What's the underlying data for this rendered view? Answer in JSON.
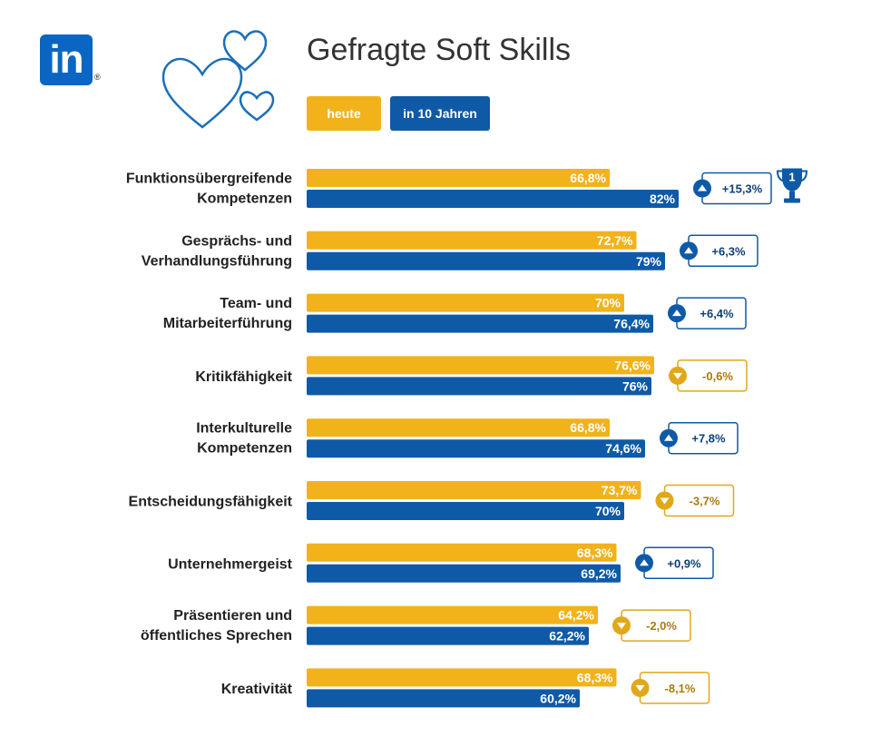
{
  "brand": {
    "logo_text": "in",
    "logo_mark": "®",
    "logo_color": "#0a66c2"
  },
  "header": {
    "title": "Gefragte Soft Skills"
  },
  "legend": [
    {
      "label": "heute",
      "color": "#f2b21a"
    },
    {
      "label": "in 10 Jahren",
      "color": "#0e5aa7"
    }
  ],
  "decoration": {
    "icon": "hearts-icon",
    "color": "#1b6fb8"
  },
  "chart_data": {
    "type": "bar",
    "orientation": "horizontal",
    "unit": "%",
    "xlim": [
      0,
      100
    ],
    "grid": false,
    "legend_position": "top-left",
    "colors": {
      "heute": "#f2b21a",
      "in_10_jahren": "#0e5aa7",
      "up": "#0e5aa7",
      "down": "#e0a81a"
    },
    "categories": [
      [
        "Funktionsübergreifende",
        "Kompetenzen"
      ],
      [
        "Gesprächs- und",
        "Verhandlungsführung"
      ],
      [
        "Team- und",
        "Mitarbeiterführung"
      ],
      [
        "Kritikfähigkeit"
      ],
      [
        "Interkulturelle",
        "Kompetenzen"
      ],
      [
        "Entscheidungsfähigkeit"
      ],
      [
        "Unternehmergeist"
      ],
      [
        "Präsentieren und",
        "öffentliches Sprechen"
      ],
      [
        "Kreativität"
      ]
    ],
    "series": [
      {
        "name": "heute",
        "values": [
          66.8,
          72.7,
          70,
          76.6,
          66.8,
          73.7,
          68.3,
          64.2,
          68.3
        ],
        "labels": [
          "66,8%",
          "72,7%",
          "70%",
          "76,6%",
          "66,8%",
          "73,7%",
          "68,3%",
          "64,2%",
          "68,3%"
        ]
      },
      {
        "name": "in 10 Jahren",
        "values": [
          82,
          79,
          76.4,
          76,
          74.6,
          70,
          69.2,
          62.2,
          60.2
        ],
        "labels": [
          "82%",
          "79%",
          "76,4%",
          "76%",
          "74,6%",
          "70%",
          "69,2%",
          "62,2%",
          "60,2%"
        ]
      }
    ],
    "change": {
      "values": [
        15.3,
        6.3,
        6.4,
        -0.6,
        7.8,
        -3.7,
        0.9,
        -2.0,
        -8.1
      ],
      "labels": [
        "+15,3%",
        "+6,3%",
        "+6,4%",
        "-0,6%",
        "+7,8%",
        "-3,7%",
        "+0,9%",
        "-2,0%",
        "-8,1%"
      ]
    },
    "top_rank": {
      "index": 0,
      "label": "1",
      "icon": "trophy-icon"
    }
  }
}
